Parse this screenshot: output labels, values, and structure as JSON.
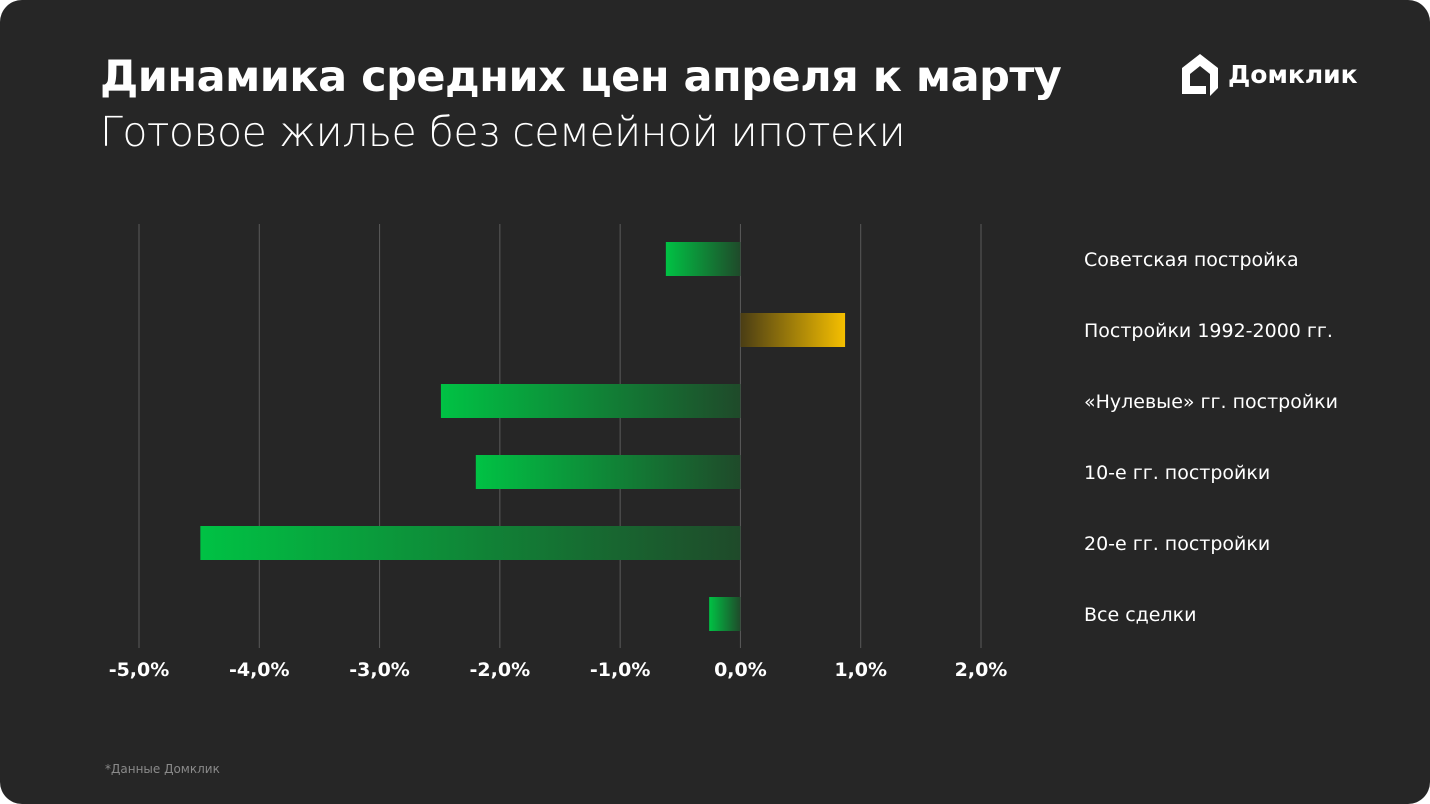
{
  "title": "Динамика средних цен апреля к марту",
  "subtitle": "Готовое жилье без семейной ипотеки",
  "brand": "Домклик",
  "footnote": "*Данные Домклик",
  "colors": {
    "background": "#262626",
    "negative": "#00c244",
    "positive": "#f5bf00",
    "grid": "#5a5a5a"
  },
  "chart_data": {
    "type": "bar",
    "orientation": "horizontal",
    "categories": [
      "Советская постройка",
      "Постройки 1992-2000 гг.",
      "«Нулевые» гг. постройки",
      "10-е гг. постройки",
      "20-е гг. постройки",
      "Все сделки"
    ],
    "values": [
      -0.62,
      0.87,
      -2.49,
      -2.2,
      -4.49,
      -0.26
    ],
    "unit": "%",
    "xlim": [
      -5,
      2
    ],
    "xticks": [
      -5,
      -4,
      -3,
      -2,
      -1,
      0,
      1,
      2
    ],
    "xtick_labels": [
      "-5,0%",
      "-4,0%",
      "-3,0%",
      "-2,0%",
      "-1,0%",
      "0,0%",
      "1,0%",
      "2,0%"
    ],
    "grid": true,
    "legend": "none",
    "category_labels_position": "right"
  }
}
